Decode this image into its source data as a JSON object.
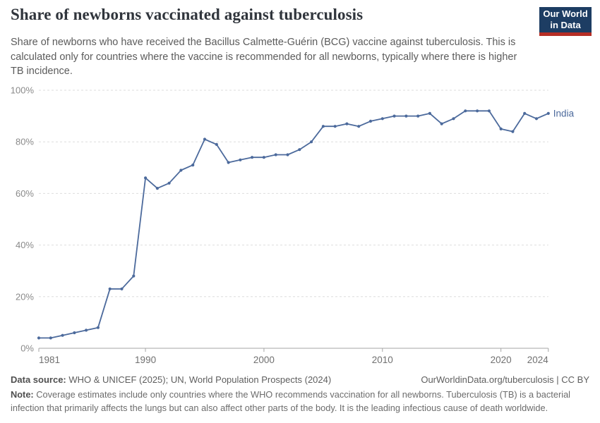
{
  "header": {
    "title": "Share of newborns vaccinated against tuberculosis",
    "subtitle": "Share of newborns who have received the Bacillus Calmette-Guérin (BCG) vaccine against tuberculosis. This is calculated only for countries where the vaccine is recommended for all newborns, typically where there is higher TB incidence.",
    "logo_line1": "Our World",
    "logo_line2": "in Data"
  },
  "chart_data": {
    "type": "line",
    "title": "Share of newborns vaccinated against tuberculosis",
    "x": [
      1981,
      1982,
      1983,
      1984,
      1985,
      1986,
      1987,
      1988,
      1989,
      1990,
      1991,
      1992,
      1993,
      1994,
      1995,
      1996,
      1997,
      1998,
      1999,
      2000,
      2001,
      2002,
      2003,
      2004,
      2005,
      2006,
      2007,
      2008,
      2009,
      2010,
      2011,
      2012,
      2013,
      2014,
      2015,
      2016,
      2017,
      2018,
      2019,
      2020,
      2021,
      2022,
      2023,
      2024
    ],
    "series": [
      {
        "name": "India",
        "color": "#4c6a9c",
        "values": [
          4,
          4,
          5,
          6,
          7,
          8,
          23,
          23,
          28,
          66,
          62,
          64,
          69,
          71,
          81,
          79,
          72,
          73,
          74,
          74,
          75,
          75,
          77,
          80,
          86,
          86,
          87,
          86,
          88,
          89,
          90,
          90,
          90,
          91,
          87,
          89,
          92,
          92,
          92,
          85,
          84,
          91,
          89,
          91
        ]
      }
    ],
    "xticks": [
      1981,
      1990,
      2000,
      2010,
      2020,
      2024
    ],
    "yticks": [
      0,
      20,
      40,
      60,
      80,
      100
    ],
    "xlim": [
      1981,
      2024
    ],
    "ylim": [
      0,
      100
    ],
    "y_format": "percent",
    "grid": "horizontal-dashed",
    "legend": "end-of-line-label",
    "end_label": "India"
  },
  "footer": {
    "datasource_label": "Data source:",
    "datasource_text": " WHO & UNICEF (2025); UN, World Population Prospects (2024)",
    "link": "OurWorldinData.org/tuberculosis | CC BY",
    "note_label": "Note:",
    "note_text": " Coverage estimates include only countries where the WHO recommends vaccination for all newborns. Tuberculosis (TB) is a bacterial infection that primarily affects the lungs but can also affect other parts of the body. It is the leading infectious cause of death worldwide."
  },
  "colors": {
    "line": "#4c6a9c",
    "grid": "#dddddd",
    "axis": "#a5a5a5",
    "y_tick_label": "#8a8a8a",
    "x_tick_label": "#707070",
    "logo_bg": "#1d3d63",
    "logo_red": "#b62e25"
  }
}
